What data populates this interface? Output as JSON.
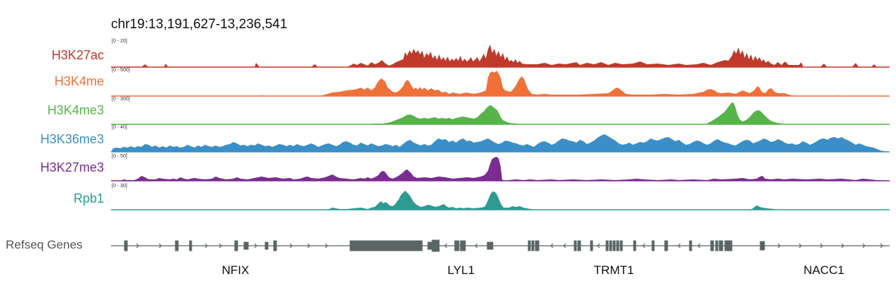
{
  "region": "chr19:13,191,627-13,236,541",
  "tracks": [
    {
      "name": "H3K27ac",
      "range": "[0 - 20]",
      "color": "#c0392b"
    },
    {
      "name": "H3K4me",
      "range": "[0 - 500]",
      "color": "#f07038"
    },
    {
      "name": "H3K4me3",
      "range": "[0 - 300]",
      "color": "#55b548"
    },
    {
      "name": "H3K36me3",
      "range": "[0 - 40]",
      "color": "#3a8fc8"
    },
    {
      "name": "H3K27me3",
      "range": "[0 - 50]",
      "color": "#7b2c91"
    },
    {
      "name": "Rpb1",
      "range": "[0 - 30]",
      "color": "#2e9a94"
    }
  ],
  "refseq": {
    "label": "Refseq Genes",
    "color": "#5a6566",
    "genes": [
      {
        "name": "NFIX"
      },
      {
        "name": "LYL1"
      },
      {
        "name": "TRMT1"
      },
      {
        "name": "NACC1"
      }
    ]
  }
}
